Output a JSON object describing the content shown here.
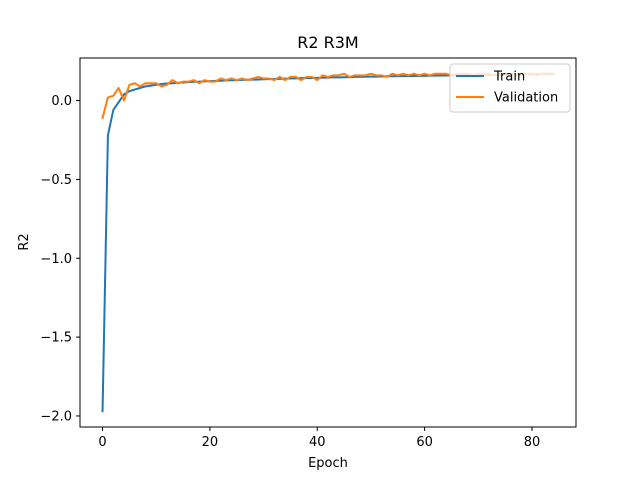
{
  "chart_data": {
    "type": "line",
    "title": "R2 R3M",
    "xlabel": "Epoch",
    "ylabel": "R2",
    "xlim": [
      -4.2,
      88.2
    ],
    "ylim": [
      -2.07,
      0.27
    ],
    "xticks": [
      0,
      20,
      40,
      60,
      80
    ],
    "xtick_labels": [
      "0",
      "20",
      "40",
      "60",
      "80"
    ],
    "yticks": [
      -2.0,
      -1.5,
      -1.0,
      -0.5,
      0.0
    ],
    "ytick_labels": [
      "−2.0",
      "−1.5",
      "−1.0",
      "−0.5",
      "0.0"
    ],
    "grid": false,
    "legend_position": "upper right",
    "series": [
      {
        "name": "Train",
        "color": "#1f77b4",
        "x": [
          0,
          1,
          2,
          3,
          4,
          5,
          6,
          7,
          8,
          9,
          10,
          11,
          12,
          13,
          14,
          15,
          16,
          17,
          18,
          19,
          20,
          21,
          22,
          23,
          24,
          25,
          26,
          27,
          28,
          29,
          30,
          31,
          32,
          33,
          34,
          35,
          36,
          37,
          38,
          39,
          40,
          41,
          42,
          43,
          44,
          45,
          46,
          47,
          48,
          49,
          50,
          51,
          52,
          53,
          54,
          55,
          56,
          57,
          58,
          59,
          60,
          61,
          62,
          63,
          64,
          65,
          66,
          67,
          68,
          69,
          70,
          71,
          72,
          73,
          74,
          75,
          76,
          77,
          78,
          79,
          80,
          81,
          82,
          83,
          84
        ],
        "values": [
          -1.97,
          -0.22,
          -0.06,
          -0.01,
          0.04,
          0.06,
          0.07,
          0.08,
          0.09,
          0.095,
          0.1,
          0.105,
          0.108,
          0.11,
          0.112,
          0.115,
          0.117,
          0.119,
          0.12,
          0.122,
          0.123,
          0.125,
          0.126,
          0.128,
          0.129,
          0.13,
          0.131,
          0.132,
          0.133,
          0.134,
          0.135,
          0.136,
          0.137,
          0.138,
          0.139,
          0.14,
          0.141,
          0.142,
          0.143,
          0.143,
          0.144,
          0.145,
          0.146,
          0.147,
          0.147,
          0.148,
          0.149,
          0.15,
          0.15,
          0.151,
          0.152,
          0.152,
          0.153,
          0.154,
          0.154,
          0.155,
          0.155,
          0.156,
          0.156,
          0.157,
          0.157,
          0.158,
          0.158,
          0.159,
          0.159,
          0.16,
          0.16,
          0.161,
          0.161,
          0.162,
          0.162,
          0.163,
          0.163,
          0.163,
          0.164,
          0.164,
          0.165,
          0.165,
          0.165,
          0.166,
          0.166,
          0.167,
          0.167,
          0.167,
          0.168
        ]
      },
      {
        "name": "Validation",
        "color": "#ff7f0e",
        "x": [
          0,
          1,
          2,
          3,
          4,
          5,
          6,
          7,
          8,
          9,
          10,
          11,
          12,
          13,
          14,
          15,
          16,
          17,
          18,
          19,
          20,
          21,
          22,
          23,
          24,
          25,
          26,
          27,
          28,
          29,
          30,
          31,
          32,
          33,
          34,
          35,
          36,
          37,
          38,
          39,
          40,
          41,
          42,
          43,
          44,
          45,
          46,
          47,
          48,
          49,
          50,
          51,
          52,
          53,
          54,
          55,
          56,
          57,
          58,
          59,
          60,
          61,
          62,
          63,
          64,
          65,
          66,
          67,
          68,
          69,
          70,
          71,
          72,
          73,
          74,
          75,
          76,
          77,
          78,
          79,
          80,
          81,
          82,
          83,
          84
        ],
        "values": [
          -0.11,
          0.02,
          0.03,
          0.08,
          0.0,
          0.1,
          0.11,
          0.09,
          0.11,
          0.11,
          0.11,
          0.09,
          0.1,
          0.13,
          0.11,
          0.12,
          0.12,
          0.13,
          0.11,
          0.13,
          0.12,
          0.12,
          0.14,
          0.13,
          0.14,
          0.13,
          0.14,
          0.13,
          0.14,
          0.15,
          0.14,
          0.14,
          0.13,
          0.15,
          0.13,
          0.15,
          0.15,
          0.13,
          0.15,
          0.15,
          0.13,
          0.16,
          0.15,
          0.16,
          0.16,
          0.17,
          0.15,
          0.16,
          0.16,
          0.16,
          0.17,
          0.16,
          0.16,
          0.15,
          0.17,
          0.16,
          0.17,
          0.16,
          0.17,
          0.16,
          0.17,
          0.16,
          0.17,
          0.17,
          0.17,
          0.16,
          0.17,
          0.17,
          0.17,
          0.16,
          0.17,
          0.17,
          0.17,
          0.16,
          0.17,
          0.17,
          0.17,
          0.16,
          0.17,
          0.17,
          0.17,
          0.16,
          0.17,
          0.17,
          0.17
        ]
      }
    ]
  }
}
